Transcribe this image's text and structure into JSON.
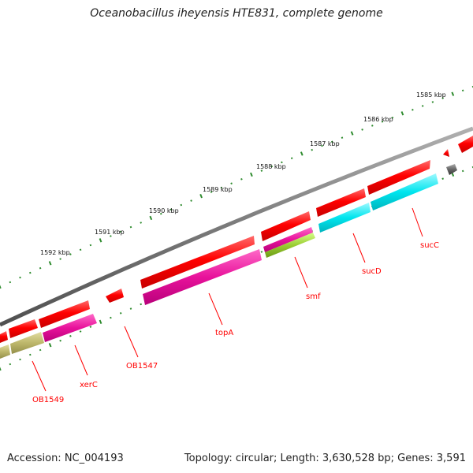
{
  "title": "Oceanobacillus iheyensis HTE831, complete genome",
  "footer": {
    "accession": "Accession: NC_004193",
    "summary": "Topology: circular; Length: 3,630,528 bp; Genes: 3,591"
  },
  "map_data": {
    "type": "circular-genome-map",
    "scale_labels": [
      "1585 kbp",
      "1586 kbp",
      "1587 kbp",
      "1588 kbp",
      "1589 kbp",
      "1590 kbp",
      "1591 kbp",
      "1592 kbp"
    ],
    "gene_labels": [
      "sucC",
      "sucD",
      "smf",
      "topA",
      "OB1547",
      "xerC",
      "OB1549"
    ],
    "colors": {
      "backbone": "#888888",
      "cds": "#ff0000",
      "tick": "#2e8b2e",
      "label": "#ff0000",
      "cog_pink": "#e8129b",
      "cog_cyan": "#00e5ee",
      "cog_lime": "#9acd32",
      "cog_olive": "#bdb76b",
      "cog_gray": "#666666"
    }
  }
}
